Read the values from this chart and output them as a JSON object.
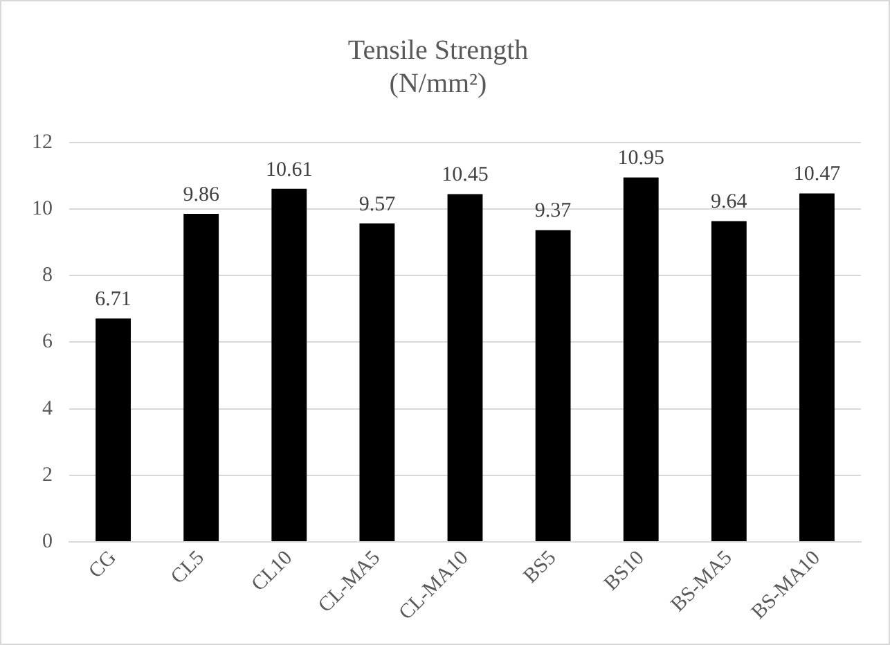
{
  "chart_data": {
    "type": "bar",
    "title": "Tensile Strength",
    "subtitle": "(N/mm²)",
    "categories": [
      "CG",
      "CL5",
      "CL10",
      "CL-MA5",
      "CL-MA10",
      "BS5",
      "BS10",
      "BS-MA5",
      "BS-MA10"
    ],
    "values": [
      6.71,
      9.86,
      10.61,
      9.57,
      10.45,
      9.37,
      10.95,
      9.64,
      10.47
    ],
    "color": "#000000",
    "ylim": [
      0,
      12
    ],
    "yticks": [
      0,
      2,
      4,
      6,
      8,
      10,
      12
    ],
    "grid": "y",
    "data_labels": true,
    "legend": false
  }
}
